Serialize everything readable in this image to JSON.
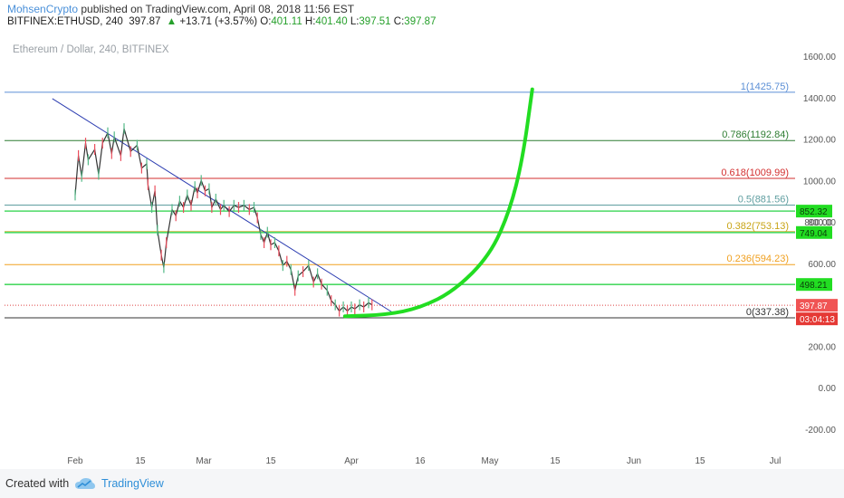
{
  "header": {
    "author": "MohsenCrypto",
    "published": " published on TradingView.com, April 08, 2018 11:56 EST"
  },
  "ohlc": {
    "symbol": "BITFINEX:ETHUSD, 240",
    "last": "397.87",
    "change": "+13.71 (+3.57%)",
    "o_label": "O:",
    "o": "401.11",
    "h_label": "H:",
    "h": "401.40",
    "l_label": "L:",
    "l": "397.51",
    "c_label": "C:",
    "c": "397.87"
  },
  "footer": {
    "created_with": "Created with",
    "brand": "TradingView"
  },
  "chart_data": {
    "type": "line",
    "title": "Ethereum / Dollar, 240, BITFINEX",
    "ylim": [
      -250,
      1650
    ],
    "y_ticks": [
      1600,
      1400,
      1200,
      1000,
      800,
      600,
      400,
      200,
      0,
      -200
    ],
    "y_tick_labels": [
      "1600.00",
      "1400.00",
      "1200.00",
      "1000.00",
      "800.00",
      "600.00",
      "400.00",
      "200.00",
      "0.00",
      "-200.00"
    ],
    "x_tick_labels": [
      "Feb",
      "15",
      "Mar",
      "15",
      "Apr",
      "16",
      "May",
      "15",
      "Jun",
      "15",
      "Jul"
    ],
    "fib_levels": [
      {
        "ratio": 1,
        "price": 1425.75,
        "label": "1(1425.75)",
        "color": "#5b8fd6"
      },
      {
        "ratio": 0.786,
        "price": 1192.84,
        "label": "0.786(1192.84)",
        "color": "#2e7d32"
      },
      {
        "ratio": 0.618,
        "price": 1009.99,
        "label": "0.618(1009.99)",
        "color": "#d32f2f"
      },
      {
        "ratio": 0.5,
        "price": 881.56,
        "label": "0.5(881.56)",
        "color": "#5f9ea0"
      },
      {
        "ratio": 0.382,
        "price": 753.13,
        "label": "0.382(753.13)",
        "color": "#c8a415"
      },
      {
        "ratio": 0.236,
        "price": 594.23,
        "label": "0.236(594.23)",
        "color": "#f0a020"
      },
      {
        "ratio": 0,
        "price": 337.38,
        "label": "0(337.38)",
        "color": "#333333"
      }
    ],
    "horizontal_lines": [
      {
        "price": 852.32,
        "label": "852.32"
      },
      {
        "price": 749.04,
        "label": "749.04"
      },
      {
        "price": 498.21,
        "label": "498.21"
      }
    ],
    "extra_tick_label": "800.00",
    "current_price": {
      "price": 397.87,
      "label": "397.87",
      "countdown": "03:04:13"
    },
    "price_series": [
      [
        0,
        930
      ],
      [
        0.05,
        1120
      ],
      [
        0.1,
        1020
      ],
      [
        0.16,
        1180
      ],
      [
        0.2,
        1100
      ],
      [
        0.3,
        1150
      ],
      [
        0.36,
        1030
      ],
      [
        0.42,
        1180
      ],
      [
        0.5,
        1230
      ],
      [
        0.56,
        1130
      ],
      [
        0.6,
        1210
      ],
      [
        0.7,
        1120
      ],
      [
        0.75,
        1250
      ],
      [
        0.85,
        1140
      ],
      [
        0.95,
        1170
      ],
      [
        1.02,
        1060
      ],
      [
        1.1,
        1080
      ],
      [
        1.12,
        980
      ],
      [
        1.18,
        870
      ],
      [
        1.23,
        950
      ],
      [
        1.27,
        760
      ],
      [
        1.33,
        640
      ],
      [
        1.37,
        580
      ],
      [
        1.41,
        700
      ],
      [
        1.5,
        860
      ],
      [
        1.56,
        830
      ],
      [
        1.62,
        900
      ],
      [
        1.68,
        870
      ],
      [
        1.74,
        930
      ],
      [
        1.8,
        880
      ],
      [
        1.86,
        970
      ],
      [
        1.9,
        940
      ],
      [
        1.96,
        1000
      ],
      [
        2.02,
        950
      ],
      [
        2.08,
        960
      ],
      [
        2.12,
        870
      ],
      [
        2.18,
        910
      ],
      [
        2.25,
        860
      ],
      [
        2.3,
        880
      ],
      [
        2.38,
        850
      ],
      [
        2.45,
        880
      ],
      [
        2.52,
        870
      ],
      [
        2.6,
        880
      ],
      [
        2.68,
        860
      ],
      [
        2.75,
        870
      ],
      [
        2.8,
        820
      ],
      [
        2.85,
        740
      ],
      [
        2.9,
        700
      ],
      [
        2.95,
        750
      ],
      [
        3.0,
        690
      ],
      [
        3.05,
        700
      ],
      [
        3.1,
        660
      ],
      [
        3.15,
        590
      ],
      [
        3.2,
        610
      ],
      [
        3.25,
        570
      ],
      [
        3.3,
        470
      ],
      [
        3.34,
        540
      ],
      [
        3.4,
        560
      ],
      [
        3.47,
        590
      ],
      [
        3.53,
        510
      ],
      [
        3.58,
        550
      ],
      [
        3.63,
        500
      ],
      [
        3.7,
        470
      ],
      [
        3.75,
        420
      ],
      [
        3.8,
        400
      ],
      [
        3.85,
        370
      ],
      [
        3.9,
        390
      ],
      [
        3.95,
        370
      ],
      [
        4.0,
        390
      ],
      [
        4.05,
        380
      ],
      [
        4.12,
        400
      ],
      [
        4.18,
        390
      ],
      [
        4.25,
        410
      ],
      [
        4.3,
        400
      ]
    ],
    "downtrend_line": [
      [
        -0.35,
        1395
      ],
      [
        4.6,
        363
      ]
    ],
    "projection_curve": [
      [
        3.92,
        345
      ],
      [
        4.5,
        352
      ],
      [
        5.0,
        385
      ],
      [
        5.5,
        470
      ],
      [
        6.0,
        640
      ],
      [
        6.3,
        850
      ],
      [
        6.5,
        1100
      ],
      [
        6.65,
        1440
      ]
    ],
    "grid": false
  }
}
